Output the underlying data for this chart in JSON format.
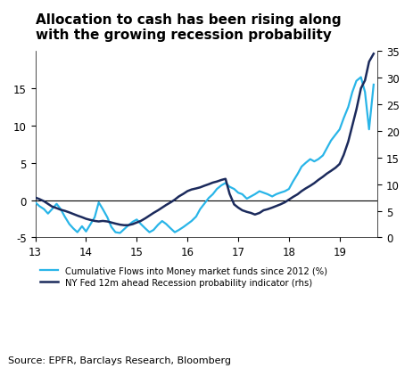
{
  "title": "Allocation to cash has been rising along\nwith the growing recession probability",
  "source": "Source: EPFR, Barclays Research, Bloomberg",
  "legend1": "Cumulative Flows into Money market funds since 2012 (%)",
  "legend2": "NY Fed 12m ahead Recession probability indicator (rhs)",
  "color1": "#29B5E8",
  "color2": "#1B2A5C",
  "xlim": [
    13,
    19.75
  ],
  "ylim_left": [
    -5,
    20
  ],
  "ylim_right": [
    0,
    35
  ],
  "yticks_left": [
    -5,
    0,
    5,
    10,
    15
  ],
  "yticks_right": [
    0,
    5,
    10,
    15,
    20,
    25,
    30,
    35
  ],
  "xticks": [
    13,
    14,
    15,
    16,
    17,
    18,
    19
  ],
  "background_color": "#ffffff",
  "cyan_x": [
    13.0,
    13.08,
    13.17,
    13.25,
    13.33,
    13.42,
    13.5,
    13.58,
    13.67,
    13.75,
    13.83,
    13.92,
    14.0,
    14.08,
    14.17,
    14.25,
    14.33,
    14.42,
    14.5,
    14.58,
    14.67,
    14.75,
    14.83,
    14.92,
    15.0,
    15.08,
    15.17,
    15.25,
    15.33,
    15.42,
    15.5,
    15.58,
    15.67,
    15.75,
    15.83,
    15.92,
    16.0,
    16.08,
    16.17,
    16.25,
    16.33,
    16.42,
    16.5,
    16.58,
    16.67,
    16.75,
    16.83,
    16.92,
    17.0,
    17.08,
    17.17,
    17.25,
    17.33,
    17.42,
    17.5,
    17.58,
    17.67,
    17.75,
    17.83,
    17.92,
    18.0,
    18.08,
    18.17,
    18.25,
    18.33,
    18.42,
    18.5,
    18.58,
    18.67,
    18.75,
    18.83,
    18.92,
    19.0,
    19.08,
    19.17,
    19.25,
    19.33,
    19.42,
    19.5,
    19.58,
    19.67
  ],
  "cyan_y": [
    -0.3,
    -0.8,
    -1.2,
    -1.8,
    -1.2,
    -0.5,
    -1.2,
    -2.2,
    -3.2,
    -3.8,
    -4.3,
    -3.5,
    -4.2,
    -3.3,
    -2.3,
    -0.3,
    -1.2,
    -2.3,
    -3.6,
    -4.3,
    -4.4,
    -3.9,
    -3.4,
    -2.9,
    -2.6,
    -3.2,
    -3.8,
    -4.3,
    -4.0,
    -3.3,
    -2.8,
    -3.2,
    -3.8,
    -4.3,
    -4.0,
    -3.6,
    -3.2,
    -2.8,
    -2.2,
    -1.2,
    -0.5,
    0.3,
    0.8,
    1.5,
    2.0,
    2.3,
    1.8,
    1.5,
    1.0,
    0.8,
    0.2,
    0.5,
    0.8,
    1.2,
    1.0,
    0.8,
    0.5,
    0.8,
    1.0,
    1.2,
    1.5,
    2.5,
    3.5,
    4.5,
    5.0,
    5.5,
    5.2,
    5.5,
    6.0,
    7.0,
    8.0,
    8.8,
    9.5,
    11.0,
    12.5,
    14.5,
    16.0,
    16.5,
    14.5,
    9.5,
    15.5
  ],
  "dark_x": [
    13.0,
    13.08,
    13.17,
    13.25,
    13.33,
    13.42,
    13.5,
    13.58,
    13.67,
    13.75,
    13.83,
    13.92,
    14.0,
    14.08,
    14.17,
    14.25,
    14.33,
    14.42,
    14.5,
    14.58,
    14.67,
    14.75,
    14.83,
    14.92,
    15.0,
    15.08,
    15.17,
    15.25,
    15.33,
    15.42,
    15.5,
    15.58,
    15.67,
    15.75,
    15.83,
    15.92,
    16.0,
    16.08,
    16.17,
    16.25,
    16.33,
    16.42,
    16.5,
    16.58,
    16.67,
    16.75,
    16.83,
    16.92,
    17.0,
    17.08,
    17.17,
    17.25,
    17.33,
    17.42,
    17.5,
    17.58,
    17.67,
    17.75,
    17.83,
    17.92,
    18.0,
    18.08,
    18.17,
    18.25,
    18.33,
    18.42,
    18.5,
    18.58,
    18.67,
    18.75,
    18.83,
    18.92,
    19.0,
    19.08,
    19.17,
    19.25,
    19.33,
    19.42,
    19.5,
    19.58,
    19.67
  ],
  "dark_y_rhs": [
    7.5,
    7.2,
    6.8,
    6.3,
    5.8,
    5.5,
    5.2,
    5.0,
    4.7,
    4.4,
    4.1,
    3.8,
    3.5,
    3.3,
    3.1,
    3.0,
    3.1,
    3.0,
    2.8,
    2.6,
    2.4,
    2.3,
    2.3,
    2.5,
    2.8,
    3.1,
    3.6,
    4.1,
    4.6,
    5.1,
    5.6,
    6.1,
    6.6,
    7.1,
    7.7,
    8.2,
    8.7,
    9.0,
    9.2,
    9.4,
    9.7,
    10.0,
    10.3,
    10.5,
    10.8,
    11.0,
    8.2,
    6.2,
    5.6,
    5.1,
    4.8,
    4.6,
    4.3,
    4.6,
    5.1,
    5.3,
    5.6,
    5.9,
    6.2,
    6.6,
    7.1,
    7.6,
    8.1,
    8.7,
    9.2,
    9.7,
    10.2,
    10.8,
    11.4,
    12.0,
    12.5,
    13.1,
    13.8,
    15.5,
    18.0,
    21.0,
    24.0,
    28.0,
    29.5,
    33.0,
    34.5
  ]
}
